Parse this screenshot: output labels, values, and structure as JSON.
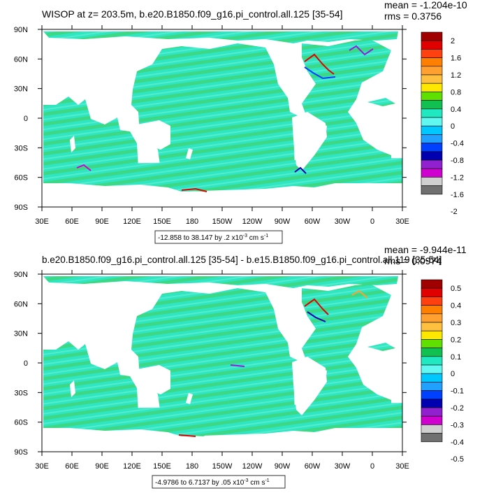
{
  "colors": {
    "ocean": "#2fe6c2",
    "land": "#ffffff",
    "frame": "#000000"
  },
  "chart_data": [
    {
      "type": "heatmap",
      "title": "WISOP at z= 203.5m, b.e20.B1850.f09_g16.pi_control.all.125 [35-54]",
      "stats": {
        "mean": "mean = -1.204e-10",
        "rms": "rms = 0.3756"
      },
      "x_ticks": [
        "30E",
        "60E",
        "90E",
        "120E",
        "150E",
        "180",
        "150W",
        "120W",
        "90W",
        "60W",
        "30W",
        "0",
        "30E"
      ],
      "y_ticks": [
        "90N",
        "60N",
        "30N",
        "0",
        "30S",
        "60S",
        "90S"
      ],
      "xlim": [
        30,
        390
      ],
      "ylim": [
        -90,
        90
      ],
      "contour_info": "-12.858 to 38.147 by .2 x10",
      "contour_info_exp": "-3",
      "contour_info_units": " cm s",
      "contour_info_units_exp": "-1",
      "colorbar": {
        "labels": [
          "2",
          "1.6",
          "1.2",
          "0.8",
          "0.4",
          "0",
          "-0.4",
          "-0.8",
          "-1.2",
          "-1.6",
          "-2"
        ],
        "colors": [
          "#a00000",
          "#e00000",
          "#ff4010",
          "#ff8000",
          "#ffa030",
          "#ffc040",
          "#ffe800",
          "#60e000",
          "#10c050",
          "#20e8c0",
          "#60f8f0",
          "#00c8ff",
          "#20a0ff",
          "#0040ff",
          "#0000b0",
          "#9020d0",
          "#d000d0",
          "#d0d0d0",
          "#707070"
        ]
      }
    },
    {
      "type": "heatmap",
      "title": "b.e20.B1850.f09_g16.pi_control.all.125 [35-54] - b.e15.B1850.f09_g16.pi_control.all.119 [35-54]",
      "stats": {
        "mean": "mean = -9.944e-11",
        "rms": "rms = 0.0974"
      },
      "x_ticks": [
        "30E",
        "60E",
        "90E",
        "120E",
        "150E",
        "180",
        "150W",
        "120W",
        "90W",
        "60W",
        "30W",
        "0",
        "30E"
      ],
      "y_ticks": [
        "90N",
        "60N",
        "30N",
        "0",
        "30S",
        "60S",
        "90S"
      ],
      "xlim": [
        30,
        390
      ],
      "ylim": [
        -90,
        90
      ],
      "contour_info": "-4.9786 to 6.7137 by .05 x10",
      "contour_info_exp": "-3",
      "contour_info_units": " cm s",
      "contour_info_units_exp": "-1",
      "colorbar": {
        "labels": [
          "0.5",
          "0.4",
          "0.3",
          "0.2",
          "0.1",
          "0",
          "-0.1",
          "-0.2",
          "-0.3",
          "-0.4",
          "-0.5"
        ],
        "colors": [
          "#a00000",
          "#e00000",
          "#ff4010",
          "#ff8000",
          "#ffa030",
          "#ffc040",
          "#ffe800",
          "#60e000",
          "#10c050",
          "#20e8c0",
          "#60f8f0",
          "#00c8ff",
          "#20a0ff",
          "#0040ff",
          "#0000b0",
          "#9020d0",
          "#d000d0",
          "#d0d0d0",
          "#707070"
        ]
      }
    }
  ]
}
